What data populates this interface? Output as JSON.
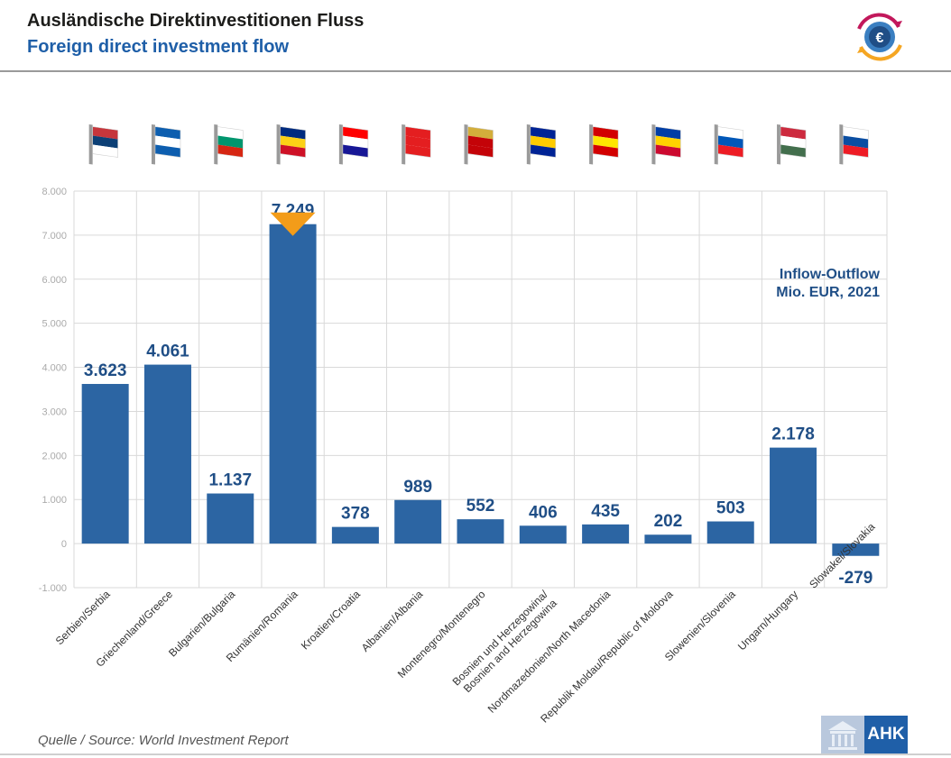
{
  "header": {
    "title_de": "Ausländische Direktinvestitionen Fluss",
    "title_en": "Foreign direct investment flow"
  },
  "logo": {
    "icon": "euro-gear-icon",
    "symbol": "€"
  },
  "chart_data": {
    "type": "bar",
    "annotation": [
      "Inflow-Outflow",
      "Mio. EUR, 2021"
    ],
    "categories": [
      "Serbien/Serbia",
      "Griechenland/Greece",
      "Bulgarien/Bulgaria",
      "Rumänien/Romania",
      "Kroatien/Croatia",
      "Albanien/Albania",
      "Montenegro/Montenegro",
      "Bosnien und Herzegowina/\nBosnien and Herzegowina",
      "Nordmazedonien/North Macedonia",
      "Republik Moldau/Republic of Moldova",
      "Slowenien/Slovenia",
      "Ungarn/Hungary",
      "Slowakei/Slovakia"
    ],
    "values": [
      3623,
      4061,
      1137,
      7249,
      378,
      989,
      552,
      406,
      435,
      202,
      503,
      2178,
      -279
    ],
    "value_labels": [
      "3.623",
      "4.061",
      "1.137",
      "7.249",
      "378",
      "989",
      "552",
      "406",
      "435",
      "202",
      "503",
      "2.178",
      "-279"
    ],
    "ylim": [
      -1000,
      8000
    ],
    "yticks": [
      -1000,
      0,
      1000,
      2000,
      3000,
      4000,
      5000,
      6000,
      7000,
      8000
    ],
    "ytick_labels": [
      "-1.000",
      "0",
      "1.000",
      "2.000",
      "3.000",
      "4.000",
      "5.000",
      "6.000",
      "7.000",
      "8.000"
    ],
    "highlight_index": 3,
    "grid": true,
    "colors": {
      "bar": "#2c65a3",
      "label": "#1f4e86",
      "highlight_marker": "#f39c19",
      "grid": "#d9d9d9",
      "tick": "#aaaaaa"
    },
    "flags": [
      [
        "#c6363c",
        "#0c4076",
        "#ffffff"
      ],
      [
        "#0d5eaf",
        "#ffffff",
        "#0d5eaf"
      ],
      [
        "#ffffff",
        "#00966e",
        "#d62612"
      ],
      [
        "#002b7f",
        "#fcd116",
        "#ce1126"
      ],
      [
        "#ff0000",
        "#ffffff",
        "#171796"
      ],
      [
        "#e41e20",
        "#e41e20",
        "#e41e20"
      ],
      [
        "#d3ae3b",
        "#c40308",
        "#c40308"
      ],
      [
        "#002395",
        "#fecb00",
        "#002395"
      ],
      [
        "#d20000",
        "#ffe600",
        "#d20000"
      ],
      [
        "#003da5",
        "#ffd200",
        "#cc092f"
      ],
      [
        "#ffffff",
        "#0057b8",
        "#ed1c24"
      ],
      [
        "#cd2a3e",
        "#ffffff",
        "#436f4d"
      ],
      [
        "#ffffff",
        "#0b4ea2",
        "#ee1c25"
      ]
    ]
  },
  "footer": {
    "source": "Quelle / Source: World Investment Report",
    "brand": "AHK",
    "brand_icon": "building-icon"
  }
}
